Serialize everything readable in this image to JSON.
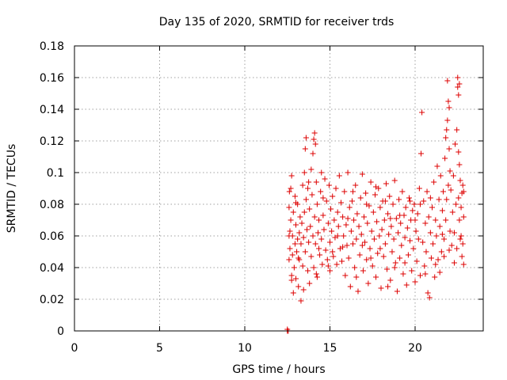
{
  "chart_data": {
    "type": "scatter",
    "title": "Day 135 of 2020, SRMTID for receiver trds",
    "xlabel": "GPS time / hours",
    "ylabel": "SRMTID / TECUs",
    "xlim": [
      0,
      24
    ],
    "ylim": [
      0,
      0.18
    ],
    "x_ticks": [
      0,
      5,
      10,
      15,
      20
    ],
    "y_ticks": [
      0,
      0.02,
      0.04,
      0.06,
      0.08,
      0.1,
      0.12,
      0.14,
      0.16,
      0.18
    ],
    "x_tick_labels": [
      "0",
      "5",
      "10",
      "15",
      "20"
    ],
    "y_tick_labels": [
      "0",
      "0.02",
      "0.04",
      "0.06",
      "0.08",
      "0.1",
      "0.12",
      "0.14",
      "0.16",
      "0.18"
    ],
    "grid": true,
    "marker": "+",
    "series": [
      {
        "name": "SRMTID",
        "color": "#dd0000",
        "points": [
          [
            12.5,
            0.0
          ],
          [
            12.5,
            0.001
          ],
          [
            12.55,
            0.0
          ],
          [
            12.6,
            0.045
          ],
          [
            12.6,
            0.06
          ],
          [
            12.6,
            0.078
          ],
          [
            12.62,
            0.088
          ],
          [
            12.65,
            0.052
          ],
          [
            12.7,
            0.07
          ],
          [
            12.7,
            0.09
          ],
          [
            12.75,
            0.035
          ],
          [
            12.75,
            0.098
          ],
          [
            12.8,
            0.048
          ],
          [
            12.8,
            0.06
          ],
          [
            12.85,
            0.024
          ],
          [
            12.85,
            0.075
          ],
          [
            12.9,
            0.04
          ],
          [
            12.95,
            0.055
          ],
          [
            12.95,
            0.085
          ],
          [
            13.0,
            0.033
          ],
          [
            13.0,
            0.067
          ],
          [
            13.05,
            0.05
          ],
          [
            13.1,
            0.058
          ],
          [
            13.1,
            0.08
          ],
          [
            13.15,
            0.028
          ],
          [
            13.2,
            0.062
          ],
          [
            13.2,
            0.045
          ],
          [
            13.25,
            0.072
          ],
          [
            13.3,
            0.019
          ],
          [
            13.3,
            0.055
          ],
          [
            13.35,
            0.068
          ],
          [
            13.4,
            0.041
          ],
          [
            13.4,
            0.092
          ],
          [
            13.45,
            0.059
          ],
          [
            13.5,
            0.1
          ],
          [
            13.5,
            0.075
          ],
          [
            13.55,
            0.115
          ],
          [
            13.55,
            0.05
          ],
          [
            13.6,
            0.122
          ],
          [
            13.6,
            0.083
          ],
          [
            13.65,
            0.064
          ],
          [
            13.7,
            0.038
          ],
          [
            13.7,
            0.09
          ],
          [
            13.75,
            0.056
          ],
          [
            13.8,
            0.077
          ],
          [
            13.8,
            0.03
          ],
          [
            13.85,
            0.066
          ],
          [
            13.9,
            0.102
          ],
          [
            13.9,
            0.047
          ],
          [
            13.95,
            0.086
          ],
          [
            14.0,
            0.06
          ],
          [
            14.0,
            0.112
          ],
          [
            14.05,
            0.121
          ],
          [
            14.05,
            0.04
          ],
          [
            14.1,
            0.125
          ],
          [
            14.1,
            0.072
          ],
          [
            14.15,
            0.118
          ],
          [
            14.15,
            0.055
          ],
          [
            14.2,
            0.094
          ],
          [
            14.25,
            0.08
          ],
          [
            14.25,
            0.034
          ],
          [
            14.3,
            0.062
          ],
          [
            14.35,
            0.07
          ],
          [
            14.4,
            0.048
          ],
          [
            14.45,
            0.088
          ],
          [
            14.5,
            0.058
          ],
          [
            14.5,
            0.1
          ],
          [
            14.55,
            0.042
          ],
          [
            14.6,
            0.073
          ],
          [
            14.65,
            0.064
          ],
          [
            14.7,
            0.096
          ],
          [
            14.75,
            0.051
          ],
          [
            14.8,
            0.082
          ],
          [
            14.85,
            0.045
          ],
          [
            14.9,
            0.068
          ],
          [
            14.95,
            0.092
          ],
          [
            15.0,
            0.056
          ],
          [
            15.0,
            0.038
          ],
          [
            15.05,
            0.077
          ],
          [
            15.1,
            0.063
          ],
          [
            15.15,
            0.085
          ],
          [
            15.2,
            0.047
          ],
          [
            15.25,
            0.07
          ],
          [
            15.3,
            0.059
          ],
          [
            15.35,
            0.09
          ],
          [
            15.4,
            0.042
          ],
          [
            15.45,
            0.075
          ],
          [
            15.5,
            0.066
          ],
          [
            15.55,
            0.098
          ],
          [
            15.6,
            0.052
          ],
          [
            15.65,
            0.081
          ],
          [
            15.7,
            0.044
          ],
          [
            15.75,
            0.072
          ],
          [
            15.8,
            0.06
          ],
          [
            15.85,
            0.088
          ],
          [
            15.9,
            0.035
          ],
          [
            15.95,
            0.067
          ],
          [
            16.0,
            0.054
          ],
          [
            16.05,
            0.1
          ],
          [
            16.1,
            0.046
          ],
          [
            16.15,
            0.078
          ],
          [
            16.2,
            0.028
          ],
          [
            16.25,
            0.063
          ],
          [
            16.3,
            0.082
          ],
          [
            16.35,
            0.055
          ],
          [
            16.4,
            0.07
          ],
          [
            16.45,
            0.04
          ],
          [
            16.5,
            0.092
          ],
          [
            16.55,
            0.058
          ],
          [
            16.6,
            0.074
          ],
          [
            16.65,
            0.025
          ],
          [
            16.7,
            0.066
          ],
          [
            16.75,
            0.048
          ],
          [
            16.8,
            0.084
          ],
          [
            16.85,
            0.061
          ],
          [
            16.9,
            0.099
          ],
          [
            16.95,
            0.038
          ],
          [
            17.0,
            0.072
          ],
          [
            17.05,
            0.056
          ],
          [
            17.1,
            0.087
          ],
          [
            17.15,
            0.045
          ],
          [
            17.2,
            0.068
          ],
          [
            17.25,
            0.03
          ],
          [
            17.3,
            0.079
          ],
          [
            17.35,
            0.052
          ],
          [
            17.4,
            0.094
          ],
          [
            17.45,
            0.063
          ],
          [
            17.5,
            0.041
          ],
          [
            17.55,
            0.075
          ],
          [
            17.6,
            0.058
          ],
          [
            17.65,
            0.086
          ],
          [
            17.7,
            0.034
          ],
          [
            17.75,
            0.069
          ],
          [
            17.8,
            0.049
          ],
          [
            17.85,
            0.09
          ],
          [
            17.9,
            0.06
          ],
          [
            17.95,
            0.078
          ],
          [
            18.0,
            0.027
          ],
          [
            18.05,
            0.064
          ],
          [
            18.1,
            0.082
          ],
          [
            18.15,
            0.047
          ],
          [
            18.2,
            0.07
          ],
          [
            18.25,
            0.055
          ],
          [
            18.3,
            0.093
          ],
          [
            18.35,
            0.039
          ],
          [
            18.4,
            0.074
          ],
          [
            18.45,
            0.061
          ],
          [
            18.5,
            0.085
          ],
          [
            18.55,
            0.032
          ],
          [
            18.6,
            0.066
          ],
          [
            18.65,
            0.05
          ],
          [
            18.7,
            0.08
          ],
          [
            18.75,
            0.058
          ],
          [
            18.8,
            0.095
          ],
          [
            18.85,
            0.043
          ],
          [
            18.9,
            0.071
          ],
          [
            18.95,
            0.025
          ],
          [
            19.0,
            0.062
          ],
          [
            19.05,
            0.083
          ],
          [
            19.1,
            0.046
          ],
          [
            19.15,
            0.068
          ],
          [
            19.2,
            0.054
          ],
          [
            19.25,
            0.088
          ],
          [
            19.3,
            0.036
          ],
          [
            19.35,
            0.073
          ],
          [
            19.4,
            0.059
          ],
          [
            19.45,
            0.078
          ],
          [
            19.5,
            0.029
          ],
          [
            19.55,
            0.065
          ],
          [
            19.6,
            0.048
          ],
          [
            19.65,
            0.084
          ],
          [
            19.7,
            0.057
          ],
          [
            19.75,
            0.07
          ],
          [
            19.8,
            0.038
          ],
          [
            19.85,
            0.076
          ],
          [
            19.9,
            0.052
          ],
          [
            19.95,
            0.08
          ],
          [
            20.0,
            0.031
          ],
          [
            20.05,
            0.063
          ],
          [
            20.1,
            0.044
          ],
          [
            20.15,
            0.074
          ],
          [
            20.2,
            0.058
          ],
          [
            20.25,
            0.09
          ],
          [
            20.3,
            0.035
          ],
          [
            20.35,
            0.112
          ],
          [
            20.4,
            0.138
          ],
          [
            20.45,
            0.056
          ],
          [
            20.5,
            0.082
          ],
          [
            20.55,
            0.041
          ],
          [
            20.6,
            0.068
          ],
          [
            20.65,
            0.05
          ],
          [
            20.7,
            0.088
          ],
          [
            20.75,
            0.024
          ],
          [
            20.8,
            0.072
          ],
          [
            20.85,
            0.021
          ],
          [
            20.9,
            0.062
          ],
          [
            20.95,
            0.046
          ],
          [
            21.0,
            0.078
          ],
          [
            21.05,
            0.055
          ],
          [
            21.1,
            0.094
          ],
          [
            21.15,
            0.034
          ],
          [
            21.2,
            0.07
          ],
          [
            21.25,
            0.06
          ],
          [
            21.3,
            0.104
          ],
          [
            21.35,
            0.045
          ],
          [
            21.4,
            0.083
          ],
          [
            21.45,
            0.066
          ],
          [
            21.5,
            0.098
          ],
          [
            21.55,
            0.05
          ],
          [
            21.6,
            0.076
          ],
          [
            21.65,
            0.088
          ],
          [
            21.7,
            0.058
          ],
          [
            21.75,
            0.109
          ],
          [
            21.8,
            0.122
          ],
          [
            21.8,
            0.07
          ],
          [
            21.85,
            0.127
          ],
          [
            21.85,
            0.083
          ],
          [
            21.9,
            0.158
          ],
          [
            21.9,
            0.133
          ],
          [
            21.95,
            0.145
          ],
          [
            21.95,
            0.092
          ],
          [
            22.0,
            0.141
          ],
          [
            22.0,
            0.115
          ],
          [
            22.05,
            0.101
          ],
          [
            22.05,
            0.063
          ],
          [
            22.1,
            0.089
          ],
          [
            22.15,
            0.054
          ],
          [
            22.2,
            0.075
          ],
          [
            22.25,
            0.098
          ],
          [
            22.3,
            0.062
          ],
          [
            22.35,
            0.118
          ],
          [
            22.4,
            0.08
          ],
          [
            22.45,
            0.127
          ],
          [
            22.45,
            0.052
          ],
          [
            22.5,
            0.16
          ],
          [
            22.5,
            0.154
          ],
          [
            22.55,
            0.149
          ],
          [
            22.55,
            0.113
          ],
          [
            22.6,
            0.105
          ],
          [
            22.6,
            0.07
          ],
          [
            22.65,
            0.095
          ],
          [
            22.7,
            0.078
          ],
          [
            22.7,
            0.06
          ],
          [
            22.75,
            0.047
          ],
          [
            22.75,
            0.087
          ],
          [
            22.8,
            0.055
          ],
          [
            22.8,
            0.092
          ],
          [
            22.85,
            0.072
          ],
          [
            22.85,
            0.042
          ],
          [
            22.6,
            0.156
          ],
          [
            22.55,
            0.084
          ],
          [
            12.65,
            0.063
          ],
          [
            12.75,
            0.032
          ],
          [
            13.0,
            0.081
          ],
          [
            13.15,
            0.046
          ],
          [
            13.45,
            0.026
          ],
          [
            13.75,
            0.094
          ],
          [
            14.2,
            0.036
          ],
          [
            14.35,
            0.052
          ],
          [
            14.6,
            0.084
          ],
          [
            14.9,
            0.041
          ],
          [
            15.15,
            0.05
          ],
          [
            15.45,
            0.06
          ],
          [
            15.75,
            0.053
          ],
          [
            16.05,
            0.071
          ],
          [
            16.35,
            0.088
          ],
          [
            16.55,
            0.034
          ],
          [
            16.9,
            0.054
          ],
          [
            17.15,
            0.08
          ],
          [
            17.4,
            0.046
          ],
          [
            17.7,
            0.091
          ],
          [
            17.95,
            0.052
          ],
          [
            18.25,
            0.082
          ],
          [
            18.55,
            0.071
          ],
          [
            18.8,
            0.04
          ],
          [
            19.1,
            0.073
          ],
          [
            19.4,
            0.043
          ],
          [
            19.7,
            0.082
          ],
          [
            20.0,
            0.07
          ],
          [
            20.3,
            0.08
          ],
          [
            20.6,
            0.036
          ],
          [
            20.9,
            0.084
          ],
          [
            21.2,
            0.042
          ],
          [
            21.45,
            0.037
          ],
          [
            21.7,
            0.047
          ],
          [
            22.0,
            0.051
          ],
          [
            22.3,
            0.043
          ],
          [
            22.65,
            0.058
          ],
          [
            22.85,
            0.088
          ],
          [
            21.6,
            0.061
          ],
          [
            18.4,
            0.028
          ]
        ]
      }
    ]
  }
}
